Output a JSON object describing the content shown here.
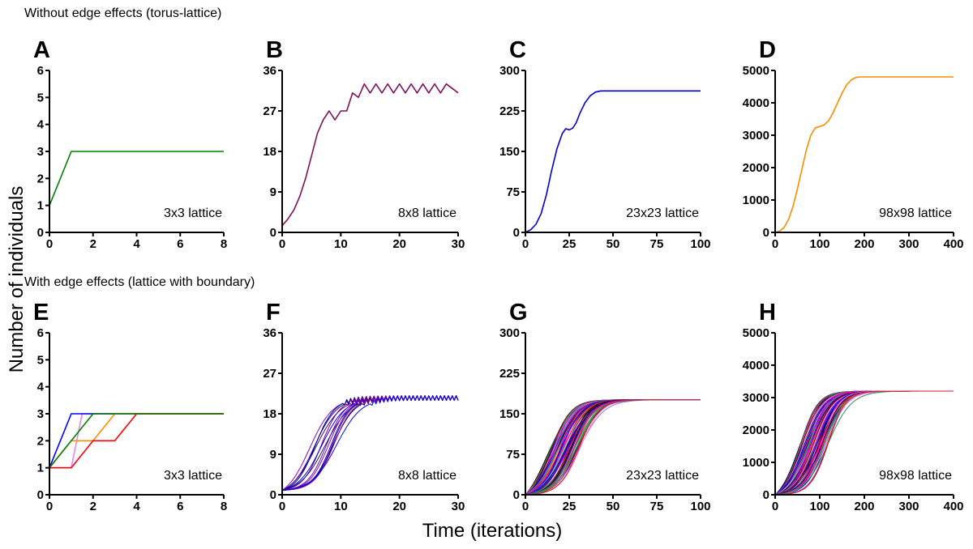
{
  "figure": {
    "section_top": "Without edge effects (torus-lattice)",
    "section_bottom": "With edge effects (lattice with boundary)",
    "ylabel": "Number of individuals",
    "xlabel": "Time (iterations)"
  },
  "chart_data": [
    {
      "panel": "A",
      "type": "line",
      "lattice_label": "3x3 lattice",
      "xlim": [
        0,
        8
      ],
      "ylim": [
        0,
        6
      ],
      "xticks": [
        0,
        2,
        4,
        6,
        8
      ],
      "yticks": [
        0,
        1,
        2,
        3,
        4,
        5,
        6
      ],
      "series": [
        {
          "color": "#008000",
          "points": [
            [
              0,
              1
            ],
            [
              1,
              3
            ],
            [
              8,
              3
            ]
          ]
        }
      ]
    },
    {
      "panel": "B",
      "type": "line",
      "lattice_label": "8x8 lattice",
      "xlim": [
        0,
        30
      ],
      "ylim": [
        0,
        36
      ],
      "xticks": [
        0,
        10,
        20,
        30
      ],
      "yticks": [
        0,
        9,
        18,
        27,
        36
      ],
      "series": [
        {
          "color": "#7f0f5f",
          "points": [
            [
              0,
              1.5
            ],
            [
              1,
              3
            ],
            [
              2,
              5
            ],
            [
              3,
              8
            ],
            [
              4,
              12
            ],
            [
              5,
              17
            ],
            [
              6,
              22
            ],
            [
              7,
              25
            ],
            [
              8,
              27
            ],
            [
              9,
              25
            ],
            [
              10,
              27
            ],
            [
              11,
              27
            ],
            [
              12,
              31
            ],
            [
              13,
              30
            ],
            [
              14,
              33
            ],
            [
              15,
              31
            ],
            [
              16,
              33
            ],
            [
              17,
              31
            ],
            [
              18,
              33
            ],
            [
              19,
              31
            ],
            [
              20,
              33
            ],
            [
              21,
              31
            ],
            [
              22,
              33
            ],
            [
              23,
              31
            ],
            [
              24,
              33
            ],
            [
              25,
              31
            ],
            [
              26,
              33
            ],
            [
              27,
              31
            ],
            [
              28,
              33
            ],
            [
              29,
              32
            ],
            [
              30,
              31
            ]
          ]
        }
      ]
    },
    {
      "panel": "C",
      "type": "line",
      "lattice_label": "23x23 lattice",
      "xlim": [
        0,
        100
      ],
      "ylim": [
        0,
        300
      ],
      "xticks": [
        0,
        25,
        50,
        75,
        100
      ],
      "yticks": [
        0,
        75,
        150,
        225,
        300
      ],
      "series": [
        {
          "color": "#0000cc",
          "points": [
            [
              0,
              0
            ],
            [
              3,
              5
            ],
            [
              6,
              15
            ],
            [
              9,
              35
            ],
            [
              12,
              70
            ],
            [
              15,
              115
            ],
            [
              18,
              155
            ],
            [
              21,
              183
            ],
            [
              23,
              192
            ],
            [
              25,
              190
            ],
            [
              27,
              193
            ],
            [
              29,
              203
            ],
            [
              31,
              220
            ],
            [
              34,
              240
            ],
            [
              37,
              253
            ],
            [
              40,
              260
            ],
            [
              43,
              262
            ],
            [
              50,
              262
            ],
            [
              60,
              262
            ],
            [
              70,
              262
            ],
            [
              80,
              262
            ],
            [
              90,
              262
            ],
            [
              100,
              262
            ]
          ]
        }
      ]
    },
    {
      "panel": "D",
      "type": "line",
      "lattice_label": "98x98 lattice",
      "xlim": [
        0,
        400
      ],
      "ylim": [
        0,
        5000
      ],
      "xticks": [
        0,
        100,
        200,
        300,
        400
      ],
      "yticks": [
        0,
        1000,
        2000,
        3000,
        4000,
        5000
      ],
      "series": [
        {
          "color": "#ff8c00",
          "points": [
            [
              0,
              0
            ],
            [
              10,
              40
            ],
            [
              20,
              150
            ],
            [
              30,
              400
            ],
            [
              40,
              800
            ],
            [
              50,
              1350
            ],
            [
              60,
              1950
            ],
            [
              70,
              2550
            ],
            [
              80,
              3000
            ],
            [
              90,
              3230
            ],
            [
              100,
              3270
            ],
            [
              110,
              3320
            ],
            [
              120,
              3450
            ],
            [
              130,
              3700
            ],
            [
              140,
              4000
            ],
            [
              150,
              4300
            ],
            [
              160,
              4550
            ],
            [
              170,
              4700
            ],
            [
              180,
              4780
            ],
            [
              190,
              4800
            ],
            [
              200,
              4800
            ],
            [
              300,
              4800
            ],
            [
              400,
              4800
            ]
          ]
        }
      ]
    },
    {
      "panel": "E",
      "type": "line",
      "lattice_label": "3x3 lattice",
      "xlim": [
        0,
        8
      ],
      "ylim": [
        0,
        6
      ],
      "xticks": [
        0,
        2,
        4,
        6,
        8
      ],
      "yticks": [
        0,
        1,
        2,
        3,
        4,
        5,
        6
      ],
      "series": [
        {
          "color": "#ee82ee",
          "points": [
            [
              0,
              1
            ],
            [
              1,
              1
            ],
            [
              1.5,
              3
            ],
            [
              8,
              3
            ]
          ]
        },
        {
          "color": "#0000ff",
          "points": [
            [
              0,
              1
            ],
            [
              1,
              3
            ],
            [
              8,
              3
            ]
          ]
        },
        {
          "color": "#ff8c00",
          "points": [
            [
              0,
              1
            ],
            [
              1,
              2
            ],
            [
              2,
              2
            ],
            [
              3,
              3
            ],
            [
              8,
              3
            ]
          ]
        },
        {
          "color": "#ff0000",
          "points": [
            [
              0,
              1
            ],
            [
              1,
              1
            ],
            [
              2,
              2
            ],
            [
              3,
              2
            ],
            [
              4,
              3
            ],
            [
              8,
              3
            ]
          ]
        },
        {
          "color": "#008000",
          "points": [
            [
              0,
              1
            ],
            [
              1,
              2
            ],
            [
              2,
              3
            ],
            [
              8,
              3
            ]
          ]
        }
      ]
    },
    {
      "panel": "F",
      "type": "line",
      "lattice_label": "8x8 lattice",
      "xlim": [
        0,
        30
      ],
      "ylim": [
        0,
        36
      ],
      "xticks": [
        0,
        10,
        20,
        30
      ],
      "yticks": [
        0,
        9,
        18,
        27,
        36
      ],
      "family": {
        "count": 14,
        "colors": [
          "#9400d3",
          "#0000cd",
          "#000080",
          "#4b0082",
          "#8b008b",
          "#0000ff",
          "#191970",
          "#6a0dad"
        ],
        "k": 0.55,
        "x50_min": 4.5,
        "x50_max": 10,
        "y0": 1,
        "y_max": 21.5,
        "oscillation": 1
      }
    },
    {
      "panel": "G",
      "type": "line",
      "lattice_label": "23x23 lattice",
      "xlim": [
        0,
        100
      ],
      "ylim": [
        0,
        300
      ],
      "xticks": [
        0,
        25,
        50,
        75,
        100
      ],
      "yticks": [
        0,
        75,
        150,
        225,
        300
      ],
      "family": {
        "count": 70,
        "colors": [
          "#000000",
          "#000080",
          "#8b008b",
          "#ff00ff",
          "#ff1493",
          "#0000ff",
          "#228b22",
          "#ff8c00",
          "#20b2aa",
          "#800000",
          "#9370db",
          "#ee82ee",
          "#2e8b57",
          "#dc143c"
        ],
        "k": 0.16,
        "x50_min": 12,
        "x50_max": 32,
        "y0": 0,
        "y_max": 176,
        "oscillation": 0
      }
    },
    {
      "panel": "H",
      "type": "line",
      "lattice_label": "98x98 lattice",
      "xlim": [
        0,
        400
      ],
      "ylim": [
        0,
        5000
      ],
      "xticks": [
        0,
        100,
        200,
        300,
        400
      ],
      "yticks": [
        0,
        1000,
        2000,
        3000,
        4000,
        5000
      ],
      "family": {
        "count": 70,
        "colors": [
          "#000000",
          "#000080",
          "#8b008b",
          "#ff00ff",
          "#ff1493",
          "#0000ff",
          "#228b22",
          "#ff8c00",
          "#20b2aa",
          "#800000",
          "#9370db",
          "#ee82ee",
          "#2e8b57",
          "#dc143c"
        ],
        "k": 0.045,
        "x50_min": 50,
        "x50_max": 125,
        "y0": 0,
        "y_max": 3200,
        "oscillation": 0
      }
    }
  ]
}
